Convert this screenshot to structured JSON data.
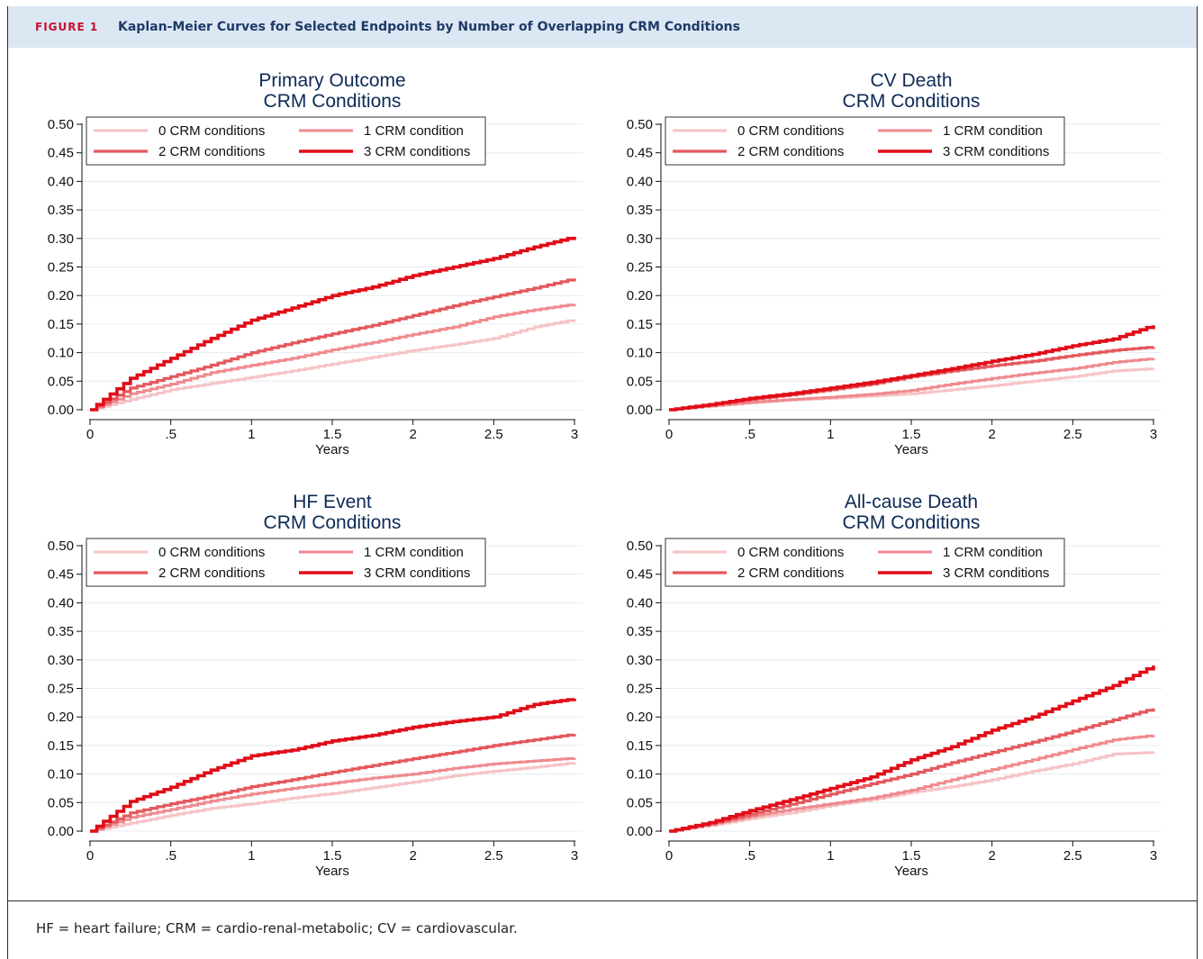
{
  "figure": {
    "label": "FIGURE 1",
    "title": "Kaplan-Meier Curves for Selected Endpoints by Number of Overlapping CRM Conditions",
    "caption": "HF = heart failure; CRM = cardio-renal-metabolic; CV = cardiovascular."
  },
  "colors": {
    "header_bg": "#dbe7f3",
    "title_text": "#0d2a55",
    "series": [
      "#f6c3c6",
      "#ef8a8e",
      "#e4585d",
      "#e00d18"
    ]
  },
  "chart_data": [
    {
      "type": "line",
      "title": "Primary Outcome",
      "subtitle": "CRM Conditions",
      "xlabel": "Years",
      "ylabel": "",
      "xlim": [
        0,
        3
      ],
      "ylim": [
        0,
        0.5
      ],
      "x_ticks": [
        "0",
        ".5",
        "1",
        "1.5",
        "2",
        "2.5",
        "3"
      ],
      "y_ticks": [
        "0.00",
        "0.05",
        "0.10",
        "0.15",
        "0.20",
        "0.25",
        "0.30",
        "0.35",
        "0.40",
        "0.45",
        "0.50"
      ],
      "grid": true,
      "legend_position": "top",
      "x": [
        0,
        0.25,
        0.5,
        0.75,
        1,
        1.25,
        1.5,
        1.75,
        2,
        2.25,
        2.5,
        2.75,
        3
      ],
      "series": [
        {
          "name": "0 CRM conditions",
          "values": [
            0,
            0.018,
            0.035,
            0.046,
            0.057,
            0.068,
            0.08,
            0.092,
            0.104,
            0.114,
            0.125,
            0.145,
            0.158
          ]
        },
        {
          "name": "1 CRM condition",
          "values": [
            0,
            0.028,
            0.045,
            0.065,
            0.078,
            0.09,
            0.105,
            0.118,
            0.132,
            0.145,
            0.163,
            0.175,
            0.185
          ]
        },
        {
          "name": "2 CRM conditions",
          "values": [
            0,
            0.038,
            0.058,
            0.078,
            0.1,
            0.117,
            0.133,
            0.148,
            0.165,
            0.182,
            0.198,
            0.213,
            0.23
          ]
        },
        {
          "name": "3 CRM conditions",
          "values": [
            0,
            0.055,
            0.09,
            0.125,
            0.157,
            0.178,
            0.2,
            0.215,
            0.235,
            0.25,
            0.265,
            0.285,
            0.303
          ]
        }
      ]
    },
    {
      "type": "line",
      "title": "CV Death",
      "subtitle": "CRM Conditions",
      "xlabel": "Years",
      "ylabel": "",
      "xlim": [
        0,
        3
      ],
      "ylim": [
        0,
        0.5
      ],
      "x_ticks": [
        "0",
        ".5",
        "1",
        "1.5",
        "2",
        "2.5",
        "3"
      ],
      "y_ticks": [
        "0.00",
        "0.05",
        "0.10",
        "0.15",
        "0.20",
        "0.25",
        "0.30",
        "0.35",
        "0.40",
        "0.45",
        "0.50"
      ],
      "grid": true,
      "legend_position": "top",
      "x": [
        0,
        0.25,
        0.5,
        0.75,
        1,
        1.25,
        1.5,
        1.75,
        2,
        2.25,
        2.5,
        2.75,
        3
      ],
      "series": [
        {
          "name": "0 CRM conditions",
          "values": [
            0,
            0.006,
            0.012,
            0.017,
            0.02,
            0.024,
            0.028,
            0.035,
            0.042,
            0.05,
            0.058,
            0.068,
            0.072
          ]
        },
        {
          "name": "1 CRM condition",
          "values": [
            0,
            0.007,
            0.013,
            0.018,
            0.022,
            0.027,
            0.034,
            0.045,
            0.055,
            0.064,
            0.072,
            0.083,
            0.09
          ]
        },
        {
          "name": "2 CRM conditions",
          "values": [
            0,
            0.008,
            0.018,
            0.026,
            0.035,
            0.045,
            0.058,
            0.068,
            0.077,
            0.085,
            0.095,
            0.104,
            0.11
          ]
        },
        {
          "name": "3 CRM conditions",
          "values": [
            0,
            0.009,
            0.02,
            0.028,
            0.038,
            0.048,
            0.06,
            0.072,
            0.085,
            0.097,
            0.112,
            0.124,
            0.148
          ]
        }
      ]
    },
    {
      "type": "line",
      "title": "HF Event",
      "subtitle": "CRM Conditions",
      "xlabel": "Years",
      "ylabel": "",
      "xlim": [
        0,
        3
      ],
      "ylim": [
        0,
        0.5
      ],
      "x_ticks": [
        "0",
        ".5",
        "1",
        "1.5",
        "2",
        "2.5",
        "3"
      ],
      "y_ticks": [
        "0.00",
        "0.05",
        "0.10",
        "0.15",
        "0.20",
        "0.25",
        "0.30",
        "0.35",
        "0.40",
        "0.45",
        "0.50"
      ],
      "grid": true,
      "legend_position": "top",
      "x": [
        0,
        0.25,
        0.5,
        0.75,
        1,
        1.25,
        1.5,
        1.75,
        2,
        2.25,
        2.5,
        2.75,
        3
      ],
      "series": [
        {
          "name": "0 CRM conditions",
          "values": [
            0,
            0.014,
            0.028,
            0.04,
            0.048,
            0.058,
            0.066,
            0.076,
            0.086,
            0.097,
            0.105,
            0.112,
            0.12
          ]
        },
        {
          "name": "1 CRM condition",
          "values": [
            0,
            0.024,
            0.038,
            0.053,
            0.065,
            0.075,
            0.084,
            0.093,
            0.1,
            0.11,
            0.118,
            0.123,
            0.128
          ]
        },
        {
          "name": "2 CRM conditions",
          "values": [
            0,
            0.032,
            0.048,
            0.062,
            0.078,
            0.09,
            0.103,
            0.115,
            0.127,
            0.138,
            0.15,
            0.16,
            0.17
          ]
        },
        {
          "name": "3 CRM conditions",
          "values": [
            0,
            0.052,
            0.077,
            0.107,
            0.132,
            0.142,
            0.158,
            0.168,
            0.182,
            0.192,
            0.2,
            0.222,
            0.232
          ]
        }
      ]
    },
    {
      "type": "line",
      "title": "All-cause Death",
      "subtitle": "CRM Conditions",
      "xlabel": "Years",
      "ylabel": "",
      "xlim": [
        0,
        3
      ],
      "ylim": [
        0,
        0.5
      ],
      "x_ticks": [
        "0",
        ".5",
        "1",
        "1.5",
        "2",
        "2.5",
        "3"
      ],
      "y_ticks": [
        "0.00",
        "0.05",
        "0.10",
        "0.15",
        "0.20",
        "0.25",
        "0.30",
        "0.35",
        "0.40",
        "0.45",
        "0.50"
      ],
      "grid": true,
      "legend_position": "top",
      "x": [
        0,
        0.25,
        0.5,
        0.75,
        1,
        1.25,
        1.5,
        1.75,
        2,
        2.25,
        2.5,
        2.75,
        3
      ],
      "series": [
        {
          "name": "0 CRM conditions",
          "values": [
            0,
            0.01,
            0.022,
            0.032,
            0.045,
            0.055,
            0.068,
            0.078,
            0.09,
            0.105,
            0.118,
            0.135,
            0.138
          ]
        },
        {
          "name": "1 CRM condition",
          "values": [
            0,
            0.012,
            0.026,
            0.038,
            0.048,
            0.058,
            0.072,
            0.09,
            0.108,
            0.125,
            0.143,
            0.16,
            0.168
          ]
        },
        {
          "name": "2 CRM conditions",
          "values": [
            0,
            0.013,
            0.03,
            0.047,
            0.065,
            0.083,
            0.1,
            0.12,
            0.138,
            0.156,
            0.175,
            0.195,
            0.215
          ]
        },
        {
          "name": "3 CRM conditions",
          "values": [
            0,
            0.015,
            0.036,
            0.055,
            0.075,
            0.095,
            0.125,
            0.148,
            0.177,
            0.2,
            0.228,
            0.255,
            0.29
          ]
        }
      ]
    }
  ]
}
